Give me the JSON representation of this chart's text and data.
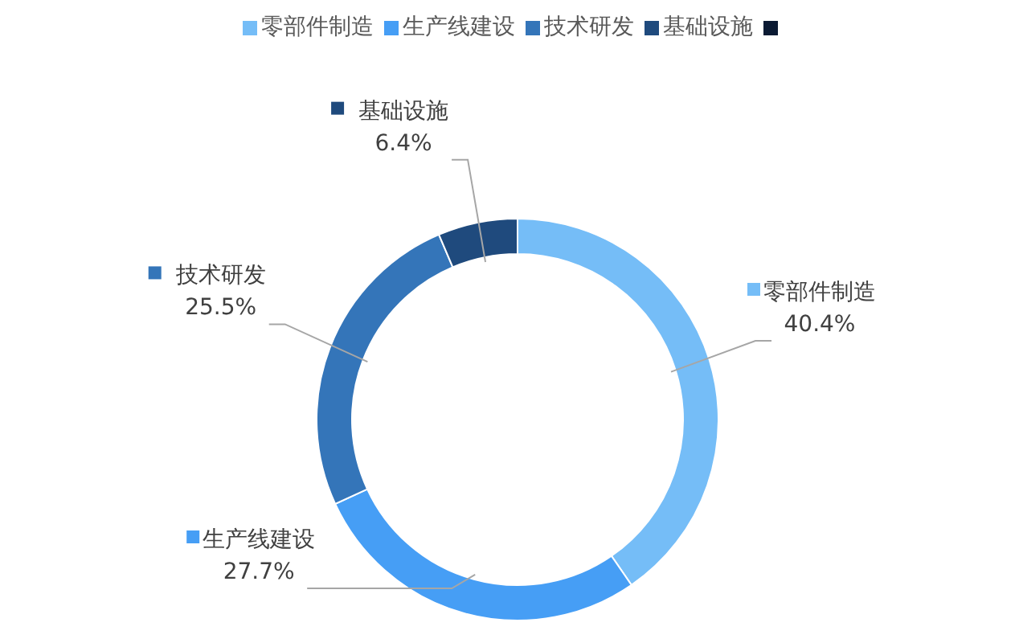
{
  "chart_data": {
    "type": "donut",
    "categories": [
      "零部件制造",
      "生产线建设",
      "技术研发",
      "基础设施",
      null
    ],
    "values": [
      40.4,
      27.7,
      25.5,
      6.4,
      0
    ],
    "colors": [
      "#75bdf7",
      "#469ef5",
      "#3475b9",
      "#1f4a7d",
      "#0b1a33"
    ],
    "value_labels": [
      "40.4%",
      "27.7%",
      "25.5%",
      "6.4%",
      null
    ],
    "legend": "top"
  }
}
